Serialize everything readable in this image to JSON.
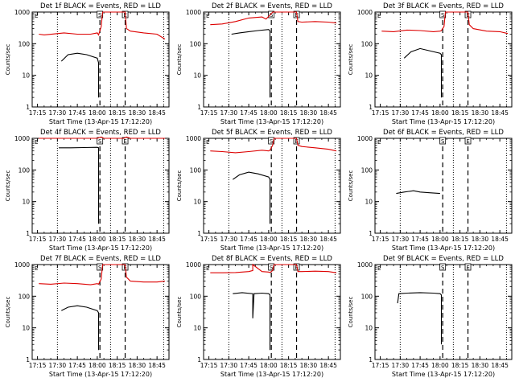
{
  "page_title": "",
  "colors": {
    "events": "#000000",
    "lld": "#dd0000",
    "axes": "#000000",
    "background": "#ffffff"
  },
  "chart_data": [
    {
      "type": "line",
      "title": "Det 1f BLACK = Events, RED = LLD",
      "xlabel": "Start Time (13-Apr-15 17:12:20)",
      "ylabel": "Counts/sec",
      "xticks": [
        "17:15",
        "17:30",
        "17:45",
        "18:00",
        "18:15",
        "18:30",
        "18:45"
      ],
      "yticks": [
        "1",
        "10",
        "100",
        "1000"
      ],
      "y_scale": "log",
      "ylim": [
        1,
        1000
      ],
      "dotted_lines": [
        "17:30",
        "18:10",
        "18:50"
      ],
      "dashed_lines": [
        "18:02",
        "18:21"
      ],
      "markers": [
        "S",
        "E"
      ],
      "series": [
        {
          "color": "#000000",
          "x": [
            "17:33",
            "17:38",
            "17:45",
            "17:52",
            "18:00",
            "18:01",
            "18:01"
          ],
          "y": [
            28,
            45,
            50,
            45,
            35,
            25,
            2
          ]
        },
        {
          "color": "#dd0000",
          "x": [
            "17:16",
            "17:20",
            "17:35",
            "17:45",
            "17:55",
            "18:00",
            "18:01",
            "18:03",
            "18:04",
            "18:21",
            "18:22",
            "18:25",
            "18:35",
            "18:45",
            "18:51"
          ],
          "y": [
            200,
            190,
            220,
            200,
            200,
            220,
            190,
            350,
            1000,
            1000,
            300,
            250,
            220,
            200,
            140
          ]
        }
      ]
    },
    {
      "type": "line",
      "title": "Det 2f BLACK = Events, RED = LLD",
      "xlabel": "Start Time (13-Apr-15 17:12:20)",
      "ylabel": "Counts/sec",
      "xticks": [
        "17:15",
        "17:30",
        "17:45",
        "18:00",
        "18:15",
        "18:30",
        "18:45"
      ],
      "yticks": [
        "1",
        "10",
        "100",
        "1000"
      ],
      "y_scale": "log",
      "ylim": [
        1,
        1000
      ],
      "dotted_lines": [
        "17:30",
        "18:10",
        "18:50"
      ],
      "dashed_lines": [
        "18:02",
        "18:21"
      ],
      "markers": [
        "S",
        "E"
      ],
      "series": [
        {
          "color": "#000000",
          "x": [
            "17:32",
            "17:38",
            "17:45",
            "17:52",
            "18:00",
            "18:01",
            "18:01"
          ],
          "y": [
            200,
            220,
            240,
            260,
            280,
            250,
            2
          ]
        },
        {
          "color": "#dd0000",
          "x": [
            "17:16",
            "17:25",
            "17:35",
            "17:45",
            "17:55",
            "17:58",
            "18:01",
            "18:03",
            "18:04",
            "18:21",
            "18:22",
            "18:25",
            "18:35",
            "18:45",
            "18:51"
          ],
          "y": [
            400,
            420,
            500,
            650,
            700,
            600,
            800,
            1000,
            1000,
            1000,
            500,
            480,
            500,
            480,
            450
          ]
        }
      ]
    },
    {
      "type": "line",
      "title": "Det 3f BLACK = Events, RED = LLD",
      "xlabel": "Start Time (13-Apr-15 17:12:20)",
      "ylabel": "Counts/sec",
      "xticks": [
        "17:15",
        "17:30",
        "17:45",
        "18:00",
        "18:15",
        "18:30",
        "18:45"
      ],
      "yticks": [
        "1",
        "10",
        "100",
        "1000"
      ],
      "y_scale": "log",
      "ylim": [
        1,
        1000
      ],
      "dotted_lines": [
        "17:30",
        "18:10",
        "18:50"
      ],
      "dashed_lines": [
        "18:02",
        "18:21"
      ],
      "markers": [
        "S",
        "E"
      ],
      "series": [
        {
          "color": "#000000",
          "x": [
            "17:33",
            "17:38",
            "17:45",
            "17:52",
            "18:00",
            "18:01",
            "18:01"
          ],
          "y": [
            35,
            55,
            70,
            60,
            50,
            45,
            2
          ]
        },
        {
          "color": "#dd0000",
          "x": [
            "17:16",
            "17:25",
            "17:35",
            "17:45",
            "17:55",
            "18:00",
            "18:01",
            "18:03",
            "18:04",
            "18:21",
            "18:22",
            "18:25",
            "18:35",
            "18:45",
            "18:51"
          ],
          "y": [
            250,
            240,
            270,
            260,
            240,
            250,
            260,
            350,
            1000,
            1000,
            400,
            300,
            250,
            240,
            210
          ]
        }
      ]
    },
    {
      "type": "line",
      "title": "Det 4f BLACK = Events, RED = LLD",
      "xlabel": "Start Time (13-Apr-15 17:12:20)",
      "ylabel": "Counts/sec",
      "xticks": [
        "17:15",
        "17:30",
        "17:45",
        "18:00",
        "18:15",
        "18:30",
        "18:45"
      ],
      "yticks": [
        "1",
        "10",
        "100",
        "1000"
      ],
      "y_scale": "log",
      "ylim": [
        1,
        1000
      ],
      "dotted_lines": [
        "17:30",
        "18:10",
        "18:50"
      ],
      "dashed_lines": [
        "18:02",
        "18:21"
      ],
      "markers": [
        "S",
        "E"
      ],
      "series": [
        {
          "color": "#000000",
          "x": [
            "17:31",
            "17:40",
            "17:50",
            "18:00",
            "18:01",
            "18:01"
          ],
          "y": [
            500,
            500,
            510,
            520,
            500,
            2
          ]
        },
        {
          "color": "#dd0000",
          "x": [
            "17:16",
            "17:30",
            "17:45",
            "18:00",
            "18:03",
            "18:05",
            "18:20",
            "18:22",
            "18:25",
            "18:35",
            "18:45",
            "18:51"
          ],
          "y": [
            1000,
            1000,
            1000,
            1000,
            1100,
            1000,
            1000,
            1100,
            1000,
            1000,
            1000,
            1000
          ]
        }
      ]
    },
    {
      "type": "line",
      "title": "Det 5f BLACK = Events, RED = LLD",
      "xlabel": "Start Time (13-Apr-15 17:12:20)",
      "ylabel": "Counts/sec",
      "xticks": [
        "17:15",
        "17:30",
        "17:45",
        "18:00",
        "18:15",
        "18:30",
        "18:45"
      ],
      "yticks": [
        "1",
        "10",
        "100",
        "1000"
      ],
      "y_scale": "log",
      "ylim": [
        1,
        1000
      ],
      "dotted_lines": [
        "17:30",
        "18:10",
        "18:50"
      ],
      "dashed_lines": [
        "18:02",
        "18:21"
      ],
      "markers": [
        "S",
        "E"
      ],
      "series": [
        {
          "color": "#000000",
          "x": [
            "17:33",
            "17:38",
            "17:45",
            "17:52",
            "18:00",
            "18:01",
            "18:01"
          ],
          "y": [
            50,
            70,
            85,
            75,
            60,
            50,
            2
          ]
        },
        {
          "color": "#dd0000",
          "x": [
            "17:16",
            "17:25",
            "17:35",
            "17:45",
            "17:55",
            "18:00",
            "18:01",
            "18:03",
            "18:04",
            "18:21",
            "18:22",
            "18:25",
            "18:35",
            "18:45",
            "18:51"
          ],
          "y": [
            400,
            380,
            350,
            380,
            420,
            400,
            420,
            600,
            1000,
            1000,
            600,
            550,
            500,
            450,
            400
          ]
        }
      ]
    },
    {
      "type": "line",
      "title": "Det 6f BLACK = Events, RED = LLD",
      "xlabel": "Start Time (13-Apr-15 17:12:20)",
      "ylabel": "Counts/sec",
      "xticks": [
        "17:15",
        "17:30",
        "17:45",
        "18:00",
        "18:15",
        "18:30",
        "18:45"
      ],
      "yticks": [
        "1",
        "10",
        "100",
        "1000"
      ],
      "y_scale": "log",
      "ylim": [
        1,
        1000
      ],
      "dotted_lines": [
        "17:30",
        "18:10",
        "18:50"
      ],
      "dashed_lines": [
        "18:02",
        "18:21"
      ],
      "markers": [
        "S",
        "E"
      ],
      "series": [
        {
          "color": "#000000",
          "x": [
            "17:27",
            "17:33",
            "17:40",
            "17:45",
            "17:52",
            "18:00"
          ],
          "y": [
            18,
            20,
            22,
            20,
            19,
            18
          ]
        }
      ]
    },
    {
      "type": "line",
      "title": "Det 7f BLACK = Events, RED = LLD",
      "xlabel": "Start Time (13-Apr-15 17:12:20)",
      "ylabel": "Counts/sec",
      "xticks": [
        "17:15",
        "17:30",
        "17:45",
        "18:00",
        "18:15",
        "18:30",
        "18:45"
      ],
      "yticks": [
        "1",
        "10",
        "100",
        "1000"
      ],
      "y_scale": "log",
      "ylim": [
        1,
        1000
      ],
      "dotted_lines": [
        "17:30",
        "18:10",
        "18:50"
      ],
      "dashed_lines": [
        "18:02",
        "18:21"
      ],
      "markers": [
        "S",
        "E"
      ],
      "series": [
        {
          "color": "#000000",
          "x": [
            "17:33",
            "17:38",
            "17:45",
            "17:52",
            "18:00",
            "18:01",
            "18:01"
          ],
          "y": [
            35,
            45,
            50,
            45,
            35,
            30,
            2
          ]
        },
        {
          "color": "#dd0000",
          "x": [
            "17:16",
            "17:25",
            "17:35",
            "17:45",
            "17:55",
            "18:00",
            "18:01",
            "18:03",
            "18:04",
            "18:21",
            "18:22",
            "18:25",
            "18:35",
            "18:45",
            "18:51"
          ],
          "y": [
            250,
            240,
            260,
            250,
            230,
            250,
            240,
            350,
            1000,
            1000,
            400,
            300,
            280,
            280,
            300
          ]
        }
      ]
    },
    {
      "type": "line",
      "title": "Det 8f BLACK = Events, RED = LLD",
      "xlabel": "Start Time (13-Apr-15 17:12:20)",
      "ylabel": "Counts/sec",
      "xticks": [
        "17:15",
        "17:30",
        "17:45",
        "18:00",
        "18:15",
        "18:30",
        "18:45"
      ],
      "yticks": [
        "1",
        "10",
        "100",
        "1000"
      ],
      "y_scale": "log",
      "ylim": [
        1,
        1000
      ],
      "dotted_lines": [
        "17:30",
        "18:10",
        "18:50"
      ],
      "dashed_lines": [
        "18:02",
        "18:21"
      ],
      "markers": [
        "S",
        "E"
      ],
      "series": [
        {
          "color": "#000000",
          "x": [
            "17:33",
            "17:40",
            "17:48",
            "17:48",
            "17:49",
            "17:55",
            "18:00",
            "18:01",
            "18:01"
          ],
          "y": [
            120,
            130,
            120,
            20,
            120,
            125,
            120,
            110,
            2
          ]
        },
        {
          "color": "#dd0000",
          "x": [
            "17:16",
            "17:25",
            "17:35",
            "17:45",
            "17:48",
            "17:48",
            "17:55",
            "18:00",
            "18:01",
            "18:03",
            "18:04",
            "18:21",
            "18:22",
            "18:25",
            "18:35",
            "18:45",
            "18:51"
          ],
          "y": [
            550,
            550,
            560,
            600,
            650,
            1000,
            600,
            580,
            560,
            650,
            1000,
            1000,
            600,
            600,
            620,
            600,
            550
          ]
        }
      ]
    },
    {
      "type": "line",
      "title": "Det 9f BLACK = Events, RED = LLD",
      "xlabel": "Start Time (13-Apr-15 17:12:20)",
      "ylabel": "Counts/sec",
      "xticks": [
        "17:15",
        "17:30",
        "17:45",
        "18:00",
        "18:15",
        "18:30",
        "18:45"
      ],
      "yticks": [
        "1",
        "10",
        "100",
        "1000"
      ],
      "y_scale": "log",
      "ylim": [
        1,
        1000
      ],
      "dotted_lines": [
        "17:30",
        "18:10",
        "18:50"
      ],
      "dashed_lines": [
        "18:02",
        "18:21"
      ],
      "markers": [
        "S",
        "E"
      ],
      "series": [
        {
          "color": "#000000",
          "x": [
            "17:28",
            "17:29",
            "17:35",
            "17:45",
            "17:55",
            "18:00",
            "18:01",
            "18:01"
          ],
          "y": [
            60,
            120,
            125,
            130,
            125,
            120,
            110,
            3
          ]
        }
      ]
    }
  ]
}
